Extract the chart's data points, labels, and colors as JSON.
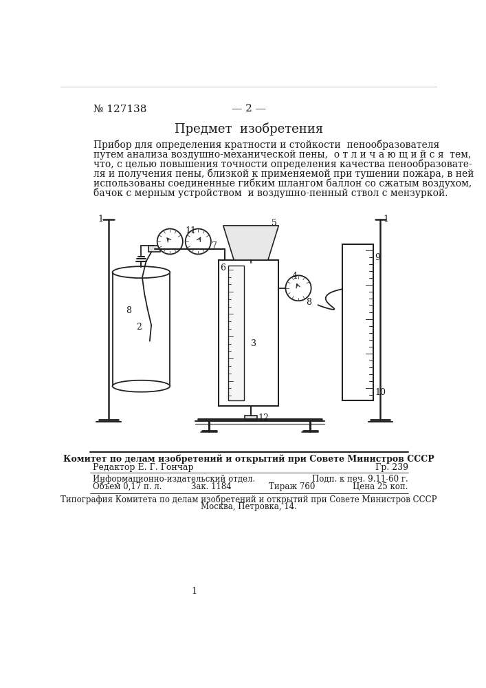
{
  "patent_number": "№ 127138",
  "page_number": "— 2 —",
  "section_title": "Предмет  изобретения",
  "main_text_lines": [
    "Прибор для определения кратности и стойкости  пенообразователя",
    "путем анализа воздушно-механической пены,  о т л и ч а ю щ и й с я  тем,",
    "что, с целью повышения точности определения качества пенообразовате-",
    "ля и получения пены, близкой к применяемой при тушении пожара, в ней",
    "использованы соединенные гибким шлангом баллон со сжатым воздухом,",
    "бачок с мерным устройством  и воздушно-пенный ствол с мензуркой."
  ],
  "footer_committee": "Комитет по делам изобретений и открытий при Совете Министров СССР",
  "footer_editor": "Редактор Е. Г. Гончар",
  "footer_gr": "Гр. 239",
  "footer_info1_left": "Информационно-издательский отдел.",
  "footer_info1_right": "Подп. к печ. 9.11-60 г.",
  "footer_info2_col1": "Объем 0,17 п. л.",
  "footer_info2_col2": "Зак. 1184",
  "footer_info2_col3": "Тираж 760",
  "footer_info2_col4": "Цена 25 коп.",
  "footer_typography": "Типография Комитета по делам изобретений и открытий при Совете Министров СССР",
  "footer_address": "Москва, Петровка, 14.",
  "page_num_bottom": "1",
  "bg_color": "#ffffff",
  "text_color": "#1a1a1a"
}
